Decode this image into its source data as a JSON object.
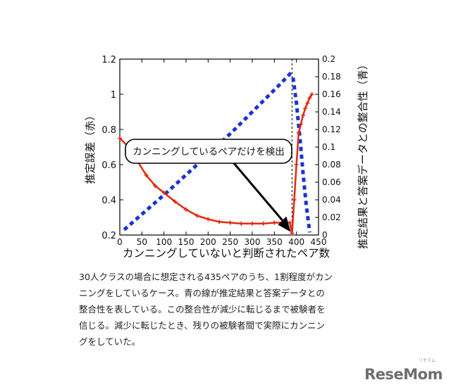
{
  "chart_data": {
    "type": "line",
    "xlabel": "カンニングしていないと判断されたペア数",
    "ylabel_left": "推定誤差（赤）",
    "ylabel_right": "推定結果と答案データとの整合性（青）",
    "xlim": [
      0,
      450
    ],
    "ylim_left": [
      0.2,
      1.2
    ],
    "ylim_right": [
      0,
      0.2
    ],
    "x_ticks": [
      "0",
      "50",
      "100",
      "150",
      "200",
      "250",
      "300",
      "350",
      "400",
      "450"
    ],
    "y_left_ticks": [
      "0.2",
      "0.4",
      "0.6",
      "0.8",
      "1",
      "1.2"
    ],
    "y_right_ticks": [
      "0",
      "0.02",
      "0.04",
      "0.06",
      "0.08",
      "0.1",
      "0.12",
      "0.14",
      "0.16",
      "0.18",
      "0.2"
    ],
    "series": [
      {
        "color": "#e02a10",
        "axis": "left",
        "x": [
          0,
          20,
          40,
          60,
          80,
          100,
          125,
          150,
          175,
          200,
          225,
          250,
          275,
          300,
          325,
          350,
          370,
          385,
          390,
          395,
          400,
          405,
          410,
          415,
          420,
          425,
          430,
          435
        ],
        "y": [
          0.75,
          0.7,
          0.62,
          0.54,
          0.48,
          0.44,
          0.39,
          0.345,
          0.31,
          0.29,
          0.275,
          0.27,
          0.265,
          0.265,
          0.265,
          0.27,
          0.27,
          0.27,
          0.21,
          0.4,
          0.6,
          0.78,
          0.83,
          0.88,
          0.92,
          0.95,
          0.98,
          1.0
        ]
      },
      {
        "color": "#1a32d6",
        "axis": "right",
        "x": [
          10,
          60,
          110,
          160,
          210,
          260,
          310,
          360,
          385,
          392,
          400,
          408,
          415,
          422,
          430
        ],
        "y": [
          0.006,
          0.028,
          0.05,
          0.073,
          0.096,
          0.12,
          0.145,
          0.17,
          0.183,
          0.18,
          0.15,
          0.11,
          0.07,
          0.035,
          0.003
        ]
      }
    ],
    "vline_x": 390,
    "annotation": {
      "text": "カンニングしているペアだけを検出",
      "arrow_to": [
        390,
        0.21
      ]
    }
  },
  "caption": [
    "30人クラスの場合に想定される435ペアのうち、1割程度がカン",
    "ニングをしているケース。青の線が推定結果と答案データとの",
    "整合性を表している。この整合性が減少に転じるまで被験者を",
    "信じる。減少に転じたとき、残りの被験者間で実際にカンニン",
    "グをしていた。"
  ],
  "logo": {
    "text": "ReseMom",
    "sub": "リセマム"
  },
  "colors": {
    "red": "#e02a10",
    "blue": "#1a32d6"
  }
}
